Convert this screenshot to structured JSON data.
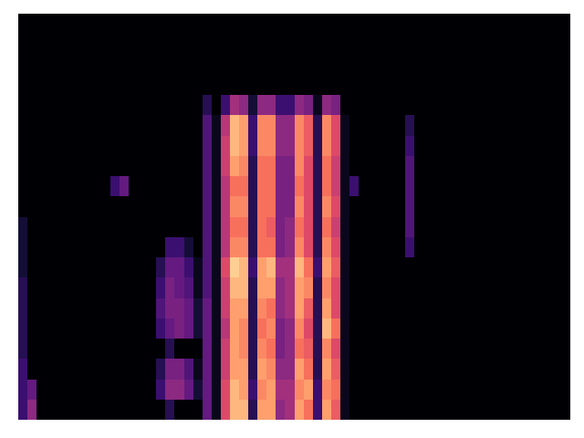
{
  "chart_data": {
    "type": "heatmap",
    "tick_labels": false,
    "grid": false,
    "zlim": [
      0,
      1
    ],
    "cells": [
      [
        0.2,
        0.4,
        0,
        0,
        0,
        0,
        0,
        0,
        0,
        0,
        0,
        0,
        0,
        0,
        0,
        0,
        0.15,
        0,
        0,
        0,
        0.3,
        0.05,
        0.6,
        0.85,
        0.85,
        0.15,
        0.8,
        0.8,
        0.4,
        0.45,
        0.8,
        0.7,
        0.2,
        0.8,
        0.65,
        0.05,
        0,
        0,
        0,
        0,
        0,
        0,
        0,
        0,
        0,
        0,
        0,
        0,
        0,
        0,
        0,
        0,
        0,
        0,
        0,
        0,
        0,
        0,
        0,
        0
      ],
      [
        0.2,
        0.3,
        0,
        0,
        0,
        0,
        0,
        0,
        0,
        0,
        0,
        0,
        0,
        0,
        0,
        0.2,
        0.4,
        0.4,
        0.3,
        0.1,
        0.3,
        0.05,
        0.6,
        0.85,
        0.8,
        0.2,
        0.75,
        0.8,
        0.45,
        0.45,
        0.75,
        0.8,
        0.2,
        0.75,
        0.7,
        0.05,
        0,
        0,
        0,
        0,
        0,
        0,
        0,
        0,
        0,
        0,
        0,
        0,
        0,
        0,
        0,
        0,
        0,
        0,
        0,
        0,
        0,
        0,
        0,
        0
      ],
      [
        0.2,
        0,
        0,
        0,
        0,
        0,
        0,
        0,
        0,
        0,
        0,
        0,
        0,
        0,
        0,
        0.15,
        0.35,
        0.35,
        0.25,
        0.05,
        0.3,
        0.05,
        0.55,
        0.8,
        0.8,
        0.15,
        0.8,
        0.75,
        0.4,
        0.4,
        0.8,
        0.7,
        0.15,
        0.8,
        0.65,
        0.05,
        0,
        0,
        0,
        0,
        0,
        0,
        0,
        0,
        0,
        0,
        0,
        0,
        0,
        0,
        0,
        0,
        0,
        0,
        0,
        0,
        0,
        0,
        0,
        0
      ],
      [
        0.15,
        0,
        0,
        0,
        0,
        0,
        0,
        0,
        0,
        0,
        0,
        0,
        0,
        0,
        0,
        0,
        0.15,
        0,
        0,
        0,
        0.3,
        0.05,
        0.55,
        0.8,
        0.75,
        0.15,
        0.75,
        0.7,
        0.35,
        0.4,
        0.7,
        0.65,
        0.15,
        0.75,
        0.6,
        0.05,
        0,
        0,
        0,
        0,
        0,
        0,
        0,
        0,
        0,
        0,
        0,
        0,
        0,
        0,
        0,
        0,
        0,
        0,
        0,
        0,
        0,
        0,
        0,
        0
      ],
      [
        0.15,
        0,
        0,
        0,
        0,
        0,
        0,
        0,
        0,
        0,
        0,
        0,
        0,
        0,
        0,
        0.2,
        0.3,
        0.35,
        0.3,
        0.1,
        0.3,
        0.05,
        0.5,
        0.8,
        0.75,
        0.15,
        0.7,
        0.75,
        0.35,
        0.4,
        0.75,
        0.6,
        0.15,
        0.85,
        0.7,
        0.05,
        0,
        0,
        0,
        0,
        0,
        0,
        0,
        0,
        0,
        0,
        0,
        0,
        0,
        0,
        0,
        0,
        0,
        0,
        0,
        0,
        0,
        0,
        0,
        0
      ],
      [
        0.15,
        0,
        0,
        0,
        0,
        0,
        0,
        0,
        0,
        0,
        0,
        0,
        0,
        0,
        0,
        0.25,
        0.35,
        0.35,
        0.3,
        0.1,
        0.3,
        0.05,
        0.55,
        0.8,
        0.8,
        0.15,
        0.75,
        0.7,
        0.4,
        0.45,
        0.8,
        0.65,
        0.15,
        0.8,
        0.6,
        0.05,
        0,
        0,
        0,
        0,
        0,
        0,
        0,
        0,
        0,
        0,
        0,
        0,
        0,
        0,
        0,
        0,
        0,
        0,
        0,
        0,
        0,
        0,
        0,
        0
      ],
      [
        0.15,
        0,
        0,
        0,
        0,
        0,
        0,
        0,
        0,
        0,
        0,
        0,
        0,
        0,
        0,
        0.2,
        0.35,
        0.3,
        0.25,
        0.05,
        0.25,
        0.05,
        0.55,
        0.85,
        0.85,
        0.15,
        0.8,
        0.8,
        0.4,
        0.45,
        0.8,
        0.75,
        0.15,
        0.75,
        0.6,
        0.05,
        0,
        0,
        0,
        0,
        0,
        0,
        0,
        0,
        0,
        0,
        0,
        0,
        0,
        0,
        0,
        0,
        0,
        0,
        0,
        0,
        0,
        0,
        0,
        0
      ],
      [
        0.1,
        0,
        0,
        0,
        0,
        0,
        0,
        0,
        0,
        0,
        0,
        0,
        0,
        0,
        0,
        0.15,
        0.3,
        0.3,
        0.2,
        0.05,
        0.25,
        0.05,
        0.6,
        0.9,
        0.85,
        0.2,
        0.8,
        0.85,
        0.45,
        0.45,
        0.85,
        0.7,
        0.2,
        0.8,
        0.65,
        0.05,
        0,
        0,
        0,
        0,
        0,
        0,
        0,
        0,
        0,
        0,
        0,
        0,
        0,
        0,
        0,
        0,
        0,
        0,
        0,
        0,
        0,
        0,
        0,
        0
      ],
      [
        0.1,
        0,
        0,
        0,
        0,
        0,
        0,
        0,
        0,
        0,
        0,
        0,
        0,
        0,
        0,
        0,
        0.2,
        0.2,
        0.1,
        0,
        0.25,
        0.05,
        0.5,
        0.75,
        0.75,
        0.15,
        0.7,
        0.7,
        0.35,
        0.4,
        0.75,
        0.6,
        0.15,
        0.75,
        0.6,
        0.05,
        0,
        0,
        0,
        0,
        0,
        0,
        0.2,
        0,
        0,
        0,
        0,
        0,
        0,
        0,
        0,
        0,
        0,
        0,
        0,
        0,
        0,
        0,
        0,
        0
      ],
      [
        0.1,
        0,
        0,
        0,
        0,
        0,
        0,
        0,
        0,
        0,
        0,
        0,
        0,
        0,
        0,
        0,
        0,
        0,
        0,
        0,
        0.25,
        0.05,
        0.5,
        0.7,
        0.7,
        0.15,
        0.7,
        0.65,
        0.35,
        0.4,
        0.7,
        0.6,
        0.15,
        0.7,
        0.55,
        0.05,
        0,
        0,
        0,
        0,
        0,
        0,
        0.25,
        0,
        0,
        0,
        0,
        0,
        0,
        0,
        0,
        0,
        0,
        0,
        0,
        0,
        0,
        0,
        0,
        0
      ],
      [
        0,
        0,
        0,
        0,
        0,
        0,
        0,
        0,
        0,
        0,
        0,
        0,
        0,
        0,
        0,
        0,
        0,
        0,
        0,
        0,
        0.25,
        0.05,
        0.5,
        0.75,
        0.75,
        0.15,
        0.7,
        0.7,
        0.35,
        0.35,
        0.75,
        0.6,
        0.15,
        0.75,
        0.6,
        0.05,
        0,
        0,
        0,
        0,
        0,
        0,
        0.25,
        0,
        0,
        0,
        0,
        0,
        0,
        0,
        0,
        0,
        0,
        0,
        0,
        0,
        0,
        0,
        0,
        0
      ],
      [
        0,
        0,
        0,
        0,
        0,
        0,
        0,
        0,
        0,
        0,
        0.2,
        0.3,
        0,
        0,
        0,
        0,
        0,
        0,
        0,
        0,
        0.25,
        0.05,
        0.5,
        0.7,
        0.7,
        0.15,
        0.7,
        0.7,
        0.35,
        0.35,
        0.7,
        0.6,
        0.15,
        0.7,
        0.55,
        0.05,
        0.2,
        0,
        0,
        0,
        0,
        0,
        0.25,
        0,
        0,
        0,
        0,
        0,
        0,
        0,
        0,
        0,
        0,
        0,
        0,
        0,
        0,
        0,
        0,
        0
      ],
      [
        0,
        0,
        0,
        0,
        0,
        0,
        0,
        0,
        0,
        0,
        0,
        0,
        0,
        0,
        0,
        0,
        0,
        0,
        0,
        0,
        0.25,
        0.05,
        0.55,
        0.8,
        0.75,
        0.15,
        0.7,
        0.7,
        0.35,
        0.35,
        0.75,
        0.6,
        0.15,
        0.7,
        0.55,
        0.05,
        0,
        0,
        0,
        0,
        0,
        0,
        0.25,
        0,
        0,
        0,
        0,
        0,
        0,
        0,
        0,
        0,
        0,
        0,
        0,
        0,
        0,
        0,
        0,
        0
      ],
      [
        0,
        0,
        0,
        0,
        0,
        0,
        0,
        0,
        0,
        0,
        0,
        0,
        0,
        0,
        0,
        0,
        0,
        0,
        0,
        0,
        0.25,
        0.05,
        0.55,
        0.85,
        0.8,
        0.2,
        0.75,
        0.75,
        0.4,
        0.4,
        0.75,
        0.65,
        0.15,
        0.75,
        0.6,
        0.05,
        0,
        0,
        0,
        0,
        0,
        0,
        0.2,
        0,
        0,
        0,
        0,
        0,
        0,
        0,
        0,
        0,
        0,
        0,
        0,
        0,
        0,
        0,
        0,
        0
      ],
      [
        0,
        0,
        0,
        0,
        0,
        0,
        0,
        0,
        0,
        0,
        0,
        0,
        0,
        0,
        0,
        0,
        0,
        0,
        0,
        0,
        0.25,
        0.05,
        0.5,
        0.85,
        0.8,
        0.2,
        0.75,
        0.75,
        0.4,
        0.4,
        0.75,
        0.65,
        0.15,
        0.75,
        0.6,
        0.05,
        0,
        0,
        0,
        0,
        0,
        0,
        0.15,
        0,
        0,
        0,
        0,
        0,
        0,
        0,
        0,
        0,
        0,
        0,
        0,
        0,
        0,
        0,
        0,
        0
      ],
      [
        0,
        0,
        0,
        0,
        0,
        0,
        0,
        0,
        0,
        0,
        0,
        0,
        0,
        0,
        0,
        0,
        0,
        0,
        0,
        0,
        0.15,
        0,
        0.2,
        0.45,
        0.4,
        0.1,
        0.4,
        0.4,
        0.2,
        0.2,
        0.4,
        0.35,
        0.05,
        0.4,
        0.35,
        0,
        0,
        0,
        0,
        0,
        0,
        0,
        0,
        0,
        0,
        0,
        0,
        0,
        0,
        0,
        0,
        0,
        0,
        0,
        0,
        0,
        0,
        0,
        0,
        0
      ],
      [
        0,
        0,
        0,
        0,
        0,
        0,
        0,
        0,
        0,
        0,
        0,
        0,
        0,
        0,
        0,
        0,
        0,
        0,
        0,
        0,
        0,
        0,
        0,
        0,
        0,
        0,
        0,
        0,
        0,
        0,
        0,
        0,
        0,
        0,
        0,
        0,
        0,
        0,
        0,
        0,
        0,
        0,
        0,
        0,
        0,
        0,
        0,
        0,
        0,
        0,
        0,
        0,
        0,
        0,
        0,
        0,
        0,
        0,
        0,
        0
      ],
      [
        0,
        0,
        0,
        0,
        0,
        0,
        0,
        0,
        0,
        0,
        0,
        0,
        0,
        0,
        0,
        0,
        0,
        0,
        0,
        0,
        0,
        0,
        0,
        0,
        0,
        0,
        0,
        0,
        0,
        0,
        0,
        0,
        0,
        0,
        0,
        0,
        0,
        0,
        0,
        0,
        0,
        0,
        0,
        0,
        0,
        0,
        0,
        0,
        0,
        0,
        0,
        0,
        0,
        0,
        0,
        0,
        0,
        0,
        0,
        0
      ],
      [
        0,
        0,
        0,
        0,
        0,
        0,
        0,
        0,
        0,
        0,
        0,
        0,
        0,
        0,
        0,
        0,
        0,
        0,
        0,
        0,
        0,
        0,
        0,
        0,
        0,
        0,
        0,
        0,
        0,
        0,
        0,
        0,
        0,
        0,
        0,
        0,
        0,
        0,
        0,
        0,
        0,
        0,
        0,
        0,
        0,
        0,
        0,
        0,
        0,
        0,
        0,
        0,
        0,
        0,
        0,
        0,
        0,
        0,
        0,
        0
      ],
      [
        0,
        0,
        0,
        0,
        0,
        0,
        0,
        0,
        0,
        0,
        0,
        0,
        0,
        0,
        0,
        0,
        0,
        0,
        0,
        0,
        0,
        0,
        0,
        0,
        0,
        0,
        0,
        0,
        0,
        0,
        0,
        0,
        0,
        0,
        0,
        0,
        0,
        0,
        0,
        0,
        0,
        0,
        0,
        0,
        0,
        0,
        0,
        0,
        0,
        0,
        0,
        0,
        0,
        0,
        0,
        0,
        0,
        0,
        0,
        0
      ]
    ]
  }
}
